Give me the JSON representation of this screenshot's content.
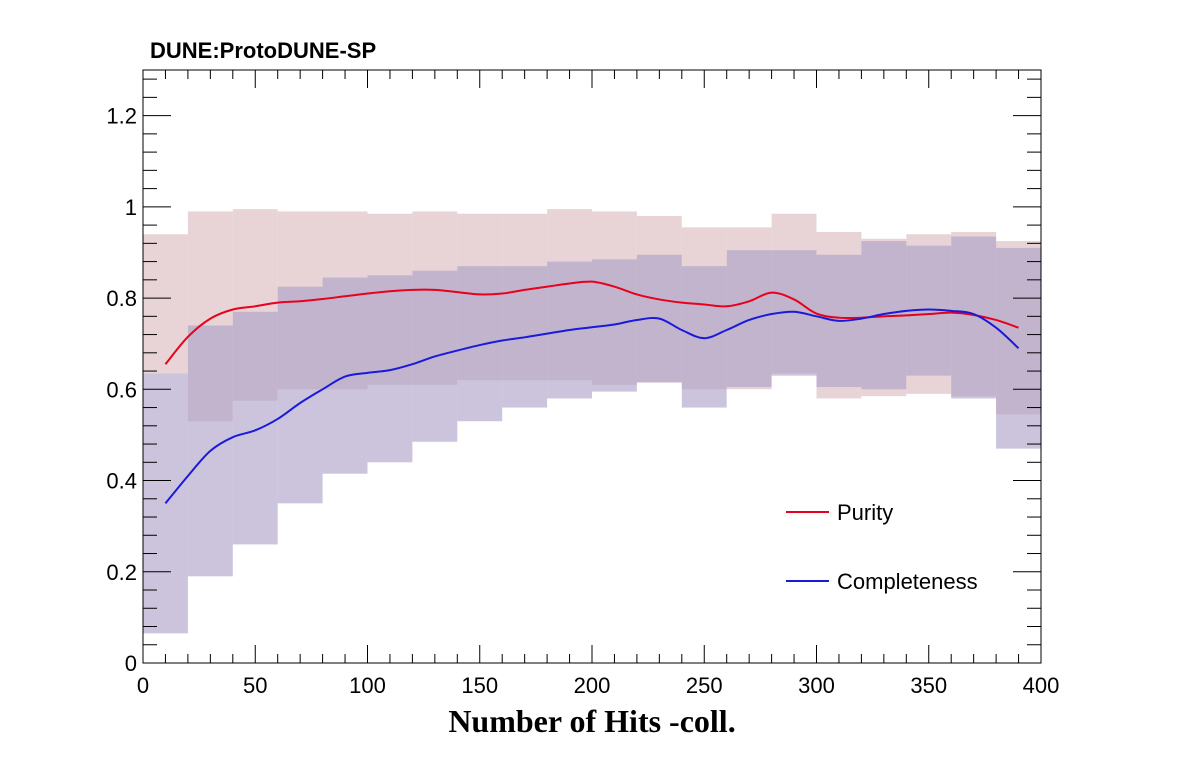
{
  "chart_data": {
    "type": "line",
    "title": "DUNE:ProtoDUNE-SP",
    "xlabel": "Number of Hits -coll.",
    "ylabel": "",
    "xlim": [
      0,
      400
    ],
    "ylim": [
      0,
      1.3
    ],
    "x_ticks": [
      "0",
      "50",
      "100",
      "150",
      "200",
      "250",
      "300",
      "350",
      "400"
    ],
    "y_ticks": [
      "0",
      "0.2",
      "0.4",
      "0.6",
      "0.8",
      "1",
      "1.2"
    ],
    "grid": false,
    "legend_position": "bottom-right",
    "bin_width": 20,
    "series": [
      {
        "name": "Purity",
        "color": "#e8001c",
        "band_color": "#d9b7bd",
        "x": [
          10,
          20,
          30,
          40,
          50,
          60,
          70,
          80,
          90,
          100,
          110,
          120,
          130,
          140,
          150,
          160,
          170,
          180,
          190,
          200,
          210,
          220,
          230,
          240,
          250,
          260,
          270,
          280,
          290,
          300,
          310,
          320,
          330,
          340,
          350,
          360,
          370,
          380,
          390
        ],
        "values": [
          0.655,
          0.715,
          0.755,
          0.775,
          0.782,
          0.79,
          0.793,
          0.798,
          0.804,
          0.81,
          0.815,
          0.818,
          0.818,
          0.813,
          0.808,
          0.81,
          0.818,
          0.825,
          0.832,
          0.836,
          0.825,
          0.808,
          0.797,
          0.79,
          0.786,
          0.782,
          0.793,
          0.812,
          0.797,
          0.766,
          0.757,
          0.757,
          0.76,
          0.762,
          0.765,
          0.768,
          0.763,
          0.752,
          0.735
        ],
        "band_x": [
          10,
          30,
          50,
          70,
          90,
          110,
          130,
          150,
          170,
          190,
          210,
          230,
          250,
          270,
          290,
          310,
          330,
          350,
          370,
          390
        ],
        "band_low": [
          0.635,
          0.53,
          0.575,
          0.6,
          0.6,
          0.61,
          0.61,
          0.62,
          0.62,
          0.62,
          0.61,
          0.615,
          0.6,
          0.6,
          0.635,
          0.58,
          0.585,
          0.59,
          0.585,
          0.545
        ],
        "band_high": [
          0.94,
          0.99,
          0.995,
          0.99,
          0.99,
          0.985,
          0.99,
          0.985,
          0.985,
          0.995,
          0.99,
          0.98,
          0.955,
          0.955,
          0.985,
          0.945,
          0.93,
          0.94,
          0.945,
          0.925
        ]
      },
      {
        "name": "Completeness",
        "color": "#1a1adb",
        "band_color": "#ab9fc7",
        "x": [
          10,
          20,
          30,
          40,
          50,
          60,
          70,
          80,
          90,
          100,
          110,
          120,
          130,
          140,
          150,
          160,
          170,
          180,
          190,
          200,
          210,
          220,
          230,
          240,
          250,
          260,
          270,
          280,
          290,
          300,
          310,
          320,
          330,
          340,
          350,
          360,
          370,
          380,
          390
        ],
        "values": [
          0.35,
          0.41,
          0.465,
          0.495,
          0.51,
          0.535,
          0.57,
          0.6,
          0.628,
          0.636,
          0.642,
          0.655,
          0.672,
          0.685,
          0.697,
          0.707,
          0.714,
          0.722,
          0.73,
          0.736,
          0.742,
          0.752,
          0.755,
          0.73,
          0.712,
          0.73,
          0.752,
          0.765,
          0.77,
          0.76,
          0.75,
          0.755,
          0.765,
          0.772,
          0.775,
          0.772,
          0.765,
          0.735,
          0.69
        ],
        "band_x": [
          10,
          30,
          50,
          70,
          90,
          110,
          130,
          150,
          170,
          190,
          210,
          230,
          250,
          270,
          290,
          310,
          330,
          350,
          370,
          390
        ],
        "band_low": [
          0.065,
          0.19,
          0.26,
          0.35,
          0.415,
          0.44,
          0.485,
          0.53,
          0.56,
          0.58,
          0.595,
          0.615,
          0.56,
          0.605,
          0.63,
          0.605,
          0.6,
          0.63,
          0.58,
          0.47
        ],
        "band_high": [
          0.635,
          0.74,
          0.77,
          0.825,
          0.845,
          0.85,
          0.86,
          0.87,
          0.87,
          0.88,
          0.885,
          0.895,
          0.87,
          0.905,
          0.905,
          0.895,
          0.925,
          0.915,
          0.935,
          0.91
        ]
      }
    ]
  }
}
